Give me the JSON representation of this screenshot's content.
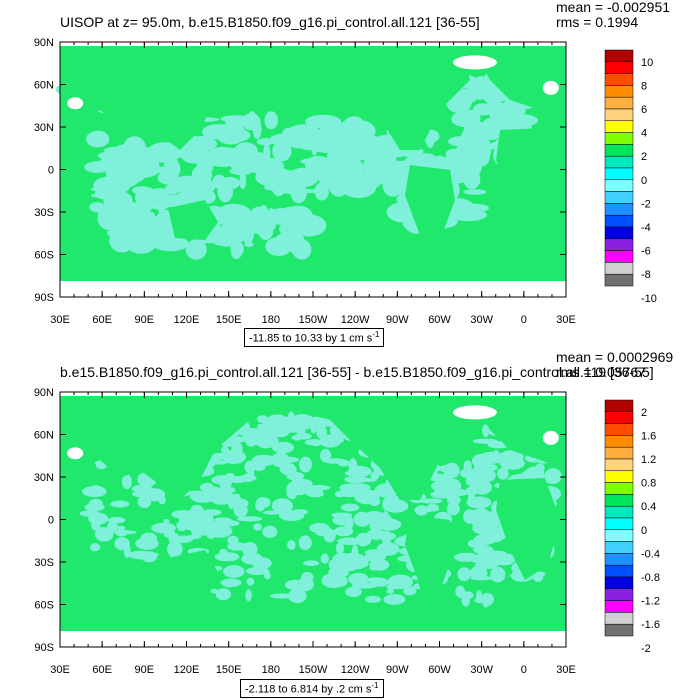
{
  "colors": {
    "land": "#20e86c",
    "ocean": "#7ff0d9",
    "cyan": "#00f0f0",
    "ice": "#ffffff",
    "frame": "#000000"
  },
  "chart_data": [
    {
      "type": "contour-map",
      "title": "UISOP at z=  95.0m, b.e15.B1850.f09_g16.pi_control.all.121 [36-55]",
      "mean_label": "mean = -0.002951",
      "rms_label": "rms = 0.1994",
      "info": "-11.85 to 10.33 by 1 cm s",
      "info_sup": "-1",
      "lat_labels": [
        "90N",
        "60N",
        "30N",
        "0",
        "30S",
        "60S",
        "90S"
      ],
      "lon_labels": [
        "30E",
        "60E",
        "90E",
        "120E",
        "150E",
        "180",
        "150W",
        "120W",
        "90W",
        "60W",
        "30W",
        "0",
        "30E"
      ],
      "colorbar": {
        "labels": [
          "10",
          "8",
          "6",
          "4",
          "2",
          "0",
          "-2",
          "-4",
          "-6",
          "-8",
          "-10"
        ],
        "colors": [
          "#b00000",
          "#ff0000",
          "#ff4c00",
          "#ff8c00",
          "#ffae40",
          "#ffd27f",
          "#ffff00",
          "#7fff00",
          "#00e65a",
          "#00e8c0",
          "#00ffff",
          "#80ffff",
          "#40d0ff",
          "#1f90ff",
          "#0050ff",
          "#0000e0",
          "#8a20e0",
          "#ff00ff",
          "#d0d0d0",
          "#707070"
        ]
      }
    },
    {
      "type": "contour-map",
      "title": "b.e15.B1850.f09_g16.pi_control.all.121 [36-55] - b.e15.B1850.f09_g16.pi_control.all.119 [36-55]",
      "mean_label": "mean = 0.0002969",
      "rms_label": "rms = 0.05767",
      "info": "-2.118 to 6.814 by .2 cm s",
      "info_sup": "-1",
      "lat_labels": [
        "90N",
        "60N",
        "30N",
        "0",
        "30S",
        "60S",
        "90S"
      ],
      "lon_labels": [
        "30E",
        "60E",
        "90E",
        "120E",
        "150E",
        "180",
        "150W",
        "120W",
        "90W",
        "60W",
        "30W",
        "0",
        "30E"
      ],
      "colorbar": {
        "labels": [
          "2",
          "1.6",
          "1.2",
          "0.8",
          "0.4",
          "0",
          "-0.4",
          "-0.8",
          "-1.2",
          "-1.6",
          "-2"
        ],
        "colors": [
          "#b00000",
          "#ff0000",
          "#ff4c00",
          "#ff8c00",
          "#ffae40",
          "#ffd27f",
          "#ffff00",
          "#7fff00",
          "#00e65a",
          "#00e8c0",
          "#00ffff",
          "#80ffff",
          "#40d0ff",
          "#1f90ff",
          "#0050ff",
          "#0000e0",
          "#8a20e0",
          "#ff00ff",
          "#d0d0d0",
          "#707070"
        ]
      }
    }
  ]
}
